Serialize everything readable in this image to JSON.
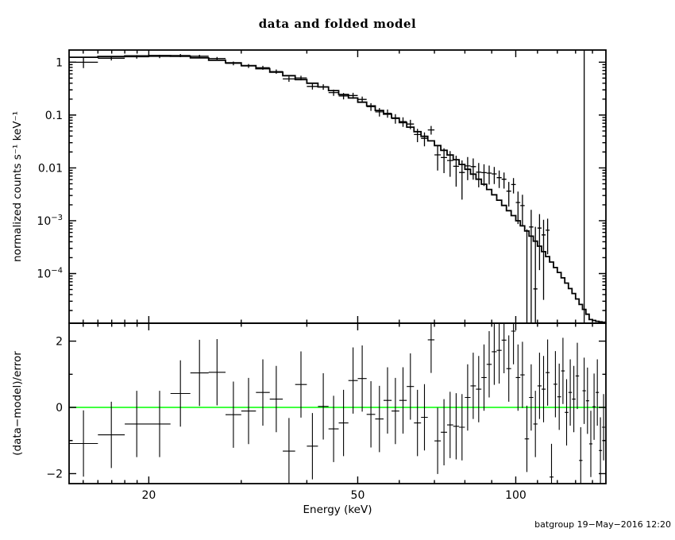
{
  "title": "data and folded model",
  "footer": "batgroup 19−May−2016 12:20",
  "axes": {
    "x_label": "Energy (keV)",
    "y_label_top": "normalized counts s⁻¹ keV⁻¹",
    "y_label_bottom": "(data−model)/error"
  },
  "colors": {
    "background": "#ffffff",
    "frame": "#000000",
    "data": "#000000",
    "model": "#000000",
    "zero_line": "#00ff00"
  },
  "chart_data": {
    "type": "line",
    "description": "X-ray spectrum: data with error bars and folded model histogram (top, log-log); (data-model)/error residuals with unit error bars (bottom).",
    "x_scale": "log",
    "x_limits_keV": [
      14.1,
      148.5
    ],
    "x_major_ticks": [
      20,
      50,
      100
    ],
    "x_minor_ticks": [
      15,
      16,
      17,
      18,
      19,
      30,
      40,
      60,
      70,
      80,
      90,
      110,
      120,
      130,
      140
    ],
    "x_tick_labels": [
      "20",
      "50",
      "100"
    ],
    "top_panel": {
      "y_scale": "log",
      "y_limits": [
        1.15e-05,
        1.7
      ],
      "y_major_ticks": [
        1,
        0.1,
        0.01,
        0.001,
        0.0001
      ],
      "y_tick_labels": [
        "1",
        "0.1",
        "0.01",
        "10^-3",
        "10^-4"
      ]
    },
    "bottom_panel": {
      "y_scale": "linear",
      "y_limits": [
        -2.3,
        2.54
      ],
      "y_major_ticks": [
        -2,
        0,
        2
      ],
      "y_minor_ticks": [
        -1,
        1
      ],
      "y_tick_labels": [
        "−2",
        "0",
        "2"
      ],
      "zero_line_value": 0,
      "residual_error_sigma": 1
    },
    "bin_edges_keV": [
      14.1,
      16,
      18,
      20,
      22,
      24,
      26,
      28,
      30,
      32,
      34,
      36,
      38,
      40,
      42,
      44,
      46,
      48,
      50,
      52,
      54,
      56,
      58,
      60,
      62,
      64,
      66,
      68,
      70,
      72,
      74,
      76,
      78,
      80,
      82,
      84,
      86,
      88,
      90,
      92,
      94,
      96,
      98,
      100,
      102,
      104,
      106,
      108,
      110,
      112,
      114,
      116,
      118,
      120,
      122,
      124,
      126,
      128,
      130,
      132,
      134,
      136,
      138,
      140,
      142,
      144,
      146,
      148
    ],
    "model_counts": [
      1.24,
      1.28,
      1.315,
      1.335,
      1.3,
      1.21,
      1.09,
      0.97,
      0.86,
      0.755,
      0.65,
      0.555,
      0.47,
      0.4,
      0.34,
      0.29,
      0.245,
      0.21,
      0.175,
      0.149,
      0.122,
      0.104,
      0.088,
      0.072,
      0.059,
      0.0485,
      0.0395,
      0.0325,
      0.0265,
      0.0215,
      0.0175,
      0.0143,
      0.0116,
      0.0094,
      0.0076,
      0.0061,
      0.0049,
      0.0039,
      0.0031,
      0.00245,
      0.00195,
      0.00155,
      0.00125,
      0.001,
      0.0008,
      0.00064,
      0.00051,
      0.00041,
      0.00033,
      0.00026,
      0.00021,
      0.000165,
      0.00013,
      0.000105,
      8.3e-05,
      6.6e-05,
      5.2e-05,
      4.2e-05,
      3.3e-05,
      2.6e-05,
      2.1e-05,
      1.7e-05,
      1.35e-05,
      1.3e-05,
      1.25e-05,
      1.22e-05,
      1.2e-05
    ],
    "residuals_sigma": [
      -1.09,
      -0.83,
      -0.5,
      -0.5,
      0.42,
      1.04,
      1.06,
      -0.22,
      -0.11,
      0.45,
      0.25,
      -1.32,
      0.69,
      -1.17,
      0.03,
      -0.65,
      -0.47,
      0.81,
      0.87,
      -0.21,
      -0.35,
      0.21,
      -0.11,
      0.21,
      0.63,
      -0.47,
      -0.3,
      2.04,
      -1.01,
      -0.75,
      -0.53,
      -0.57,
      -0.6,
      0.3,
      0.65,
      0.55,
      0.9,
      1.3,
      1.68,
      1.72,
      2.03,
      1.17,
      2.3,
      0.9,
      0.98,
      -0.95,
      0.3,
      -0.5,
      0.65,
      0.55,
      1.05,
      -2.1,
      0.7,
      0.32,
      1.1,
      -0.15,
      0.45,
      0.25,
      0.95,
      -1.6,
      0.5,
      0.2,
      -1.1,
      0.02,
      0.45,
      -1.3,
      -0.6
    ],
    "relative_errors": [
      0.18,
      0.085,
      0.075,
      0.07,
      0.07,
      0.07,
      0.075,
      0.08,
      0.085,
      0.09,
      0.095,
      0.1,
      0.105,
      0.11,
      0.12,
      0.125,
      0.13,
      0.14,
      0.15,
      0.16,
      0.17,
      0.185,
      0.2,
      0.215,
      0.23,
      0.25,
      0.27,
      0.3,
      0.33,
      0.36,
      0.4,
      0.44,
      0.49,
      0.54,
      0.6,
      0.66,
      0.73,
      0.8,
      0.88,
      0.97,
      1.05,
      1.15,
      1.25,
      1.35,
      1.45,
      1.55,
      1.65,
      1.75,
      1.85,
      1.95,
      2.05,
      2.15,
      2.25,
      2.4,
      2.5,
      2.6,
      2.7,
      2.8,
      2.9,
      3.0,
      3.1,
      6.0,
      8.0,
      10.0,
      12.0,
      14.0,
      16.0
    ],
    "full_height_error_bar_keV": 135
  }
}
